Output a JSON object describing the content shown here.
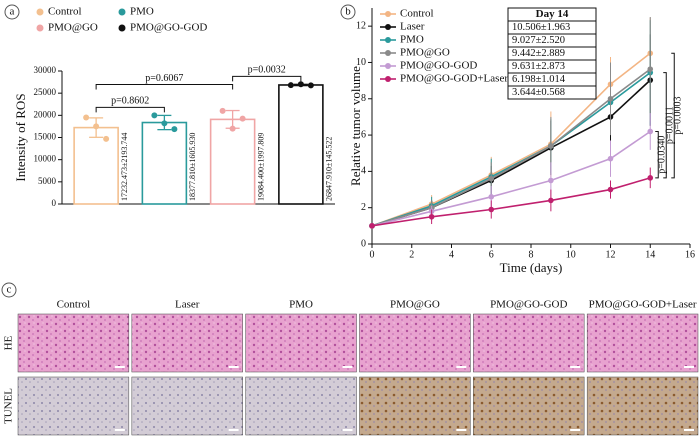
{
  "panel_labels": [
    "a",
    "b",
    "c"
  ],
  "chart_data": [
    {
      "type": "bar",
      "ylabel": "Intensity of ROS",
      "categories": [
        "Control",
        "PMO",
        "PMO@GO",
        "PMO@GO-GOD"
      ],
      "values": [
        17232.473,
        18377.81,
        19084.4,
        26847.91
      ],
      "errors": [
        2193.744,
        1605.93,
        1997.809,
        145.522
      ],
      "value_labels": [
        "17232.473±2193.744",
        "18377.810±1605.930",
        "19084.400±1997.809",
        "26847.910±145.522"
      ],
      "colors": [
        "#f3c08f",
        "#2a9a9c",
        "#f0a5a5",
        "#111111"
      ],
      "points": [
        [
          19500,
          17500,
          14700
        ],
        [
          20000,
          18200,
          16900
        ],
        [
          21000,
          17000,
          19250
        ],
        [
          26800,
          27000,
          26750
        ]
      ],
      "ylim": [
        0,
        30000
      ],
      "yticks": [
        0,
        5000,
        10000,
        15000,
        20000,
        25000,
        30000
      ],
      "comparisons": [
        {
          "label": "p=0.8602",
          "pair": [
            0,
            1
          ]
        },
        {
          "label": "p=0.6067",
          "pair": [
            0,
            2
          ]
        },
        {
          "label": "p=0.0032",
          "pair": [
            2,
            3
          ]
        }
      ]
    },
    {
      "type": "line",
      "xlabel": "Time (days)",
      "ylabel": "Relative tumor volume",
      "x": [
        0,
        3,
        6,
        9,
        12,
        14
      ],
      "series": [
        {
          "name": "Control",
          "color": "#f3b584",
          "values": [
            1,
            2.2,
            3.8,
            5.5,
            8.8,
            10.506
          ],
          "errors": [
            0,
            0.5,
            1.0,
            1.8,
            1.5,
            1.963
          ]
        },
        {
          "name": "Laser",
          "color": "#111111",
          "values": [
            1,
            2.0,
            3.5,
            5.3,
            7.0,
            9.027
          ],
          "errors": [
            0,
            0.4,
            0.8,
            1.5,
            1.8,
            2.52
          ]
        },
        {
          "name": "PMO",
          "color": "#2a9a9c",
          "values": [
            1,
            2.1,
            3.7,
            5.4,
            7.8,
            9.442
          ],
          "errors": [
            0,
            0.5,
            1.0,
            1.5,
            1.7,
            2.889
          ]
        },
        {
          "name": "PMO@GO",
          "color": "#8a8a8a",
          "values": [
            1,
            2.0,
            3.6,
            5.4,
            8.0,
            9.631
          ],
          "errors": [
            0,
            0.4,
            0.9,
            1.6,
            2.0,
            2.873
          ]
        },
        {
          "name": "PMO@GO-GOD",
          "color": "#c39bd3",
          "values": [
            1,
            1.8,
            2.6,
            3.5,
            4.7,
            6.198
          ],
          "errors": [
            0,
            0.3,
            0.6,
            1.0,
            1.0,
            1.014
          ]
        },
        {
          "name": "PMO@GO-GOD+Laser",
          "color": "#c0206e",
          "values": [
            1,
            1.5,
            1.9,
            2.4,
            3.0,
            3.644
          ],
          "errors": [
            0,
            0.4,
            0.5,
            0.6,
            0.5,
            0.568
          ]
        }
      ],
      "xlim": [
        0,
        16
      ],
      "xticks": [
        0,
        2,
        4,
        6,
        8,
        10,
        12,
        14,
        16
      ],
      "ylim": [
        0,
        13
      ],
      "yticks": [
        0,
        2,
        4,
        6,
        8,
        10,
        12
      ],
      "table": {
        "title": "Day 14",
        "rows": [
          "10.506±1.963",
          "9.027±2.520",
          "9.442±2.889",
          "9.631±2.873",
          "6.198±1.014",
          "3.644±0.568"
        ]
      },
      "comparisons": [
        {
          "label": "p=0.0340",
          "pair": [
            5,
            4
          ]
        },
        {
          "label": "p=0.0011",
          "pair": [
            5,
            2
          ]
        },
        {
          "label": "p=0.0003",
          "pair": [
            5,
            0
          ]
        }
      ]
    }
  ],
  "histology": {
    "columns": [
      "Control",
      "Laser",
      "PMO",
      "PMO@GO",
      "PMO@GO-GOD",
      "PMO@GO-GOD+Laser"
    ],
    "rows": [
      "HE",
      "TUNEL"
    ]
  }
}
